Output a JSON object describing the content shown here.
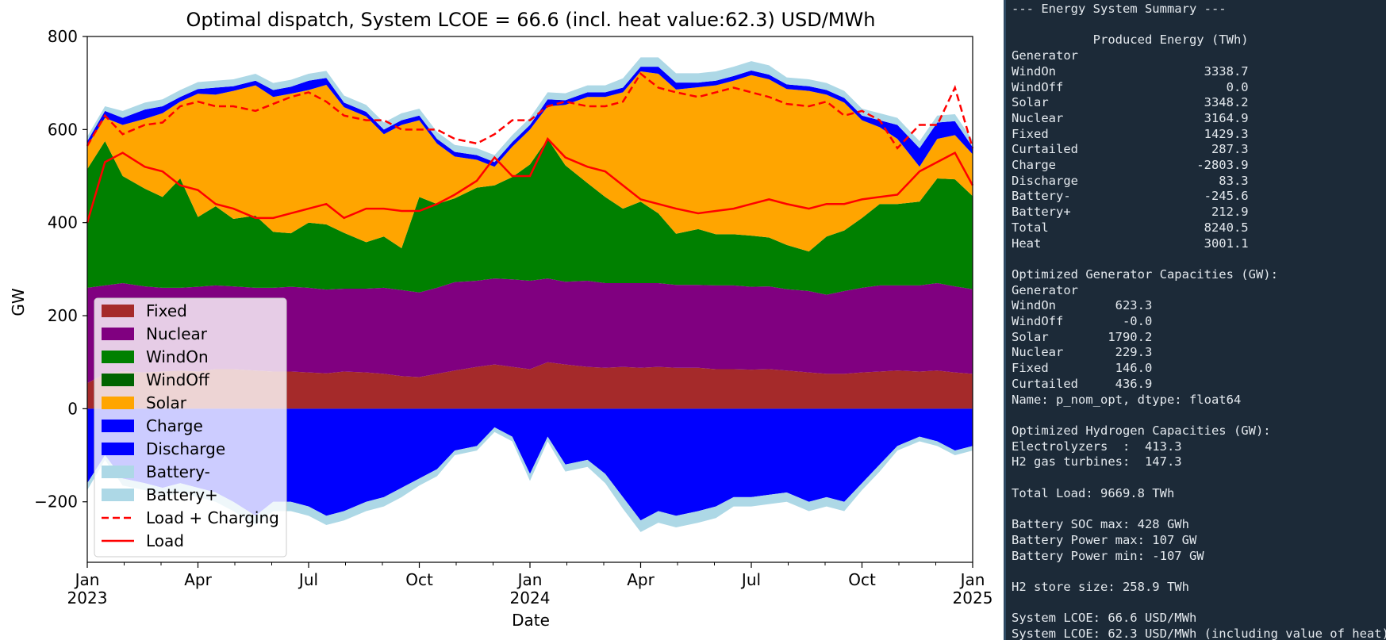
{
  "chart_data": {
    "type": "area",
    "title": "Optimal dispatch, System LCOE = 66.6 (incl. heat value:62.3) USD/MWh",
    "xlabel": "Date",
    "ylabel": "GW",
    "ylim": [
      -330,
      800
    ],
    "yticks": [
      -200,
      0,
      200,
      400,
      600,
      800
    ],
    "ytick_labels": [
      "−200",
      "0",
      "200",
      "400",
      "600",
      "800"
    ],
    "xlim": [
      2023.0,
      2025.0
    ],
    "xticks": [
      {
        "x": 2023.0,
        "label": "Jan",
        "year": "2023"
      },
      {
        "x": 2023.25,
        "label": "Apr",
        "year": ""
      },
      {
        "x": 2023.5,
        "label": "Jul",
        "year": ""
      },
      {
        "x": 2023.75,
        "label": "Oct",
        "year": ""
      },
      {
        "x": 2024.0,
        "label": "Jan",
        "year": "2024"
      },
      {
        "x": 2024.25,
        "label": "Apr",
        "year": ""
      },
      {
        "x": 2024.5,
        "label": "Jul",
        "year": ""
      },
      {
        "x": 2024.75,
        "label": "Oct",
        "year": ""
      },
      {
        "x": 2025.0,
        "label": "Jan",
        "year": "2025"
      }
    ],
    "grid": false,
    "legend_position": "lower-left",
    "legend": [
      "Fixed",
      "Nuclear",
      "WindOn",
      "WindOff",
      "Solar",
      "Charge",
      "Discharge",
      "Battery-",
      "Battery+",
      "Load + Charging",
      "Load"
    ],
    "colors": {
      "Fixed": "#a52a2a",
      "Nuclear": "#800080",
      "WindOn": "#008000",
      "WindOff": "#006400",
      "Solar": "#ffa500",
      "Charge": "#0000ff",
      "Discharge": "#0000ff",
      "Battery-": "#add8e6",
      "Battery+": "#add8e6",
      "Load + Charging": "#ff0000",
      "Load": "#ff0000"
    },
    "x": [
      2023.0,
      2023.04,
      2023.08,
      2023.13,
      2023.17,
      2023.21,
      2023.25,
      2023.29,
      2023.33,
      2023.38,
      2023.42,
      2023.46,
      2023.5,
      2023.54,
      2023.58,
      2023.63,
      2023.67,
      2023.71,
      2023.75,
      2023.79,
      2023.83,
      2023.88,
      2023.92,
      2023.96,
      2024.0,
      2024.04,
      2024.08,
      2024.13,
      2024.17,
      2024.21,
      2024.25,
      2024.29,
      2024.33,
      2024.38,
      2024.42,
      2024.46,
      2024.5,
      2024.54,
      2024.58,
      2024.63,
      2024.67,
      2024.71,
      2024.75,
      2024.79,
      2024.83,
      2024.88,
      2024.92,
      2024.96,
      2025.0
    ],
    "series": [
      {
        "name": "Fixed",
        "values": [
          55,
          75,
          80,
          78,
          80,
          82,
          80,
          85,
          85,
          82,
          80,
          80,
          78,
          76,
          80,
          78,
          75,
          70,
          68,
          75,
          82,
          90,
          95,
          90,
          85,
          100,
          95,
          90,
          88,
          90,
          88,
          90,
          88,
          88,
          85,
          85,
          84,
          85,
          82,
          78,
          75,
          75,
          78,
          80,
          82,
          80,
          82,
          78,
          75
        ]
      },
      {
        "name": "Nuclear",
        "values": [
          205,
          190,
          190,
          185,
          180,
          178,
          182,
          180,
          178,
          178,
          180,
          182,
          182,
          180,
          178,
          180,
          185,
          185,
          182,
          185,
          190,
          185,
          185,
          188,
          190,
          180,
          178,
          185,
          182,
          180,
          182,
          180,
          178,
          178,
          180,
          180,
          178,
          178,
          175,
          175,
          170,
          178,
          182,
          185,
          183,
          185,
          188,
          185,
          182
        ]
      },
      {
        "name": "WindOn",
        "values": [
          255,
          310,
          230,
          210,
          195,
          235,
          150,
          170,
          145,
          155,
          120,
          115,
          140,
          140,
          120,
          100,
          110,
          90,
          205,
          180,
          180,
          200,
          200,
          220,
          250,
          300,
          250,
          210,
          185,
          160,
          175,
          150,
          110,
          120,
          110,
          110,
          110,
          105,
          95,
          85,
          125,
          130,
          150,
          175,
          175,
          180,
          225,
          230,
          200
        ]
      },
      {
        "name": "WindOff",
        "values": [
          0,
          0,
          0,
          0,
          0,
          0,
          0,
          0,
          0,
          0,
          0,
          0,
          0,
          0,
          0,
          0,
          0,
          0,
          0,
          0,
          0,
          0,
          0,
          0,
          0,
          0,
          0,
          0,
          0,
          0,
          0,
          0,
          0,
          0,
          0,
          0,
          0,
          0,
          0,
          0,
          0,
          0,
          0,
          0,
          0,
          0,
          0,
          0,
          0
        ]
      },
      {
        "name": "Solar",
        "values": [
          50,
          50,
          110,
          150,
          180,
          165,
          265,
          240,
          275,
          280,
          290,
          300,
          285,
          300,
          270,
          270,
          220,
          265,
          165,
          130,
          90,
          60,
          40,
          65,
          75,
          70,
          130,
          185,
          215,
          250,
          280,
          300,
          310,
          305,
          320,
          330,
          345,
          340,
          335,
          345,
          305,
          275,
          210,
          165,
          140,
          75,
          85,
          95,
          90
        ]
      },
      {
        "name": "Charge",
        "values": [
          -160,
          -100,
          -150,
          -160,
          -170,
          -160,
          -170,
          -180,
          -200,
          -230,
          -200,
          -200,
          -210,
          -230,
          -220,
          -200,
          -190,
          -170,
          -150,
          -130,
          -90,
          -80,
          -40,
          -60,
          -140,
          -60,
          -120,
          -110,
          -140,
          -190,
          -240,
          -220,
          -230,
          -220,
          -210,
          -190,
          -190,
          -185,
          -180,
          -200,
          -190,
          -200,
          -160,
          -120,
          -80,
          -60,
          -70,
          -90,
          -80
        ]
      },
      {
        "name": "Discharge",
        "values": [
          10,
          15,
          15,
          20,
          15,
          10,
          10,
          15,
          10,
          10,
          15,
          15,
          20,
          15,
          10,
          10,
          10,
          10,
          10,
          10,
          10,
          10,
          10,
          10,
          10,
          15,
          10,
          10,
          10,
          10,
          10,
          15,
          15,
          10,
          10,
          10,
          10,
          10,
          10,
          10,
          10,
          10,
          10,
          15,
          30,
          40,
          35,
          30,
          15
        ]
      },
      {
        "name": "Battery-",
        "values": [
          -15,
          -10,
          -15,
          -15,
          -20,
          -20,
          -20,
          -20,
          -20,
          -20,
          -20,
          -20,
          -20,
          -20,
          -20,
          -20,
          -20,
          -20,
          -15,
          -15,
          -10,
          -10,
          -10,
          -10,
          -15,
          -10,
          -15,
          -15,
          -20,
          -25,
          -25,
          -25,
          -25,
          -25,
          -25,
          -20,
          -20,
          -20,
          -20,
          -20,
          -20,
          -20,
          -15,
          -15,
          -10,
          -10,
          -10,
          -10,
          -10
        ]
      },
      {
        "name": "Battery+",
        "values": [
          10,
          10,
          15,
          15,
          15,
          15,
          15,
          15,
          15,
          15,
          15,
          15,
          15,
          15,
          15,
          15,
          15,
          15,
          15,
          15,
          15,
          15,
          15,
          15,
          15,
          15,
          15,
          15,
          15,
          20,
          20,
          20,
          20,
          20,
          20,
          20,
          20,
          20,
          15,
          15,
          15,
          15,
          15,
          15,
          15,
          15,
          15,
          15,
          15
        ]
      },
      {
        "name": "Load + Charging",
        "values": [
          565,
          630,
          590,
          610,
          615,
          650,
          660,
          650,
          650,
          640,
          655,
          670,
          680,
          660,
          630,
          620,
          620,
          600,
          600,
          600,
          580,
          570,
          590,
          620,
          620,
          650,
          660,
          650,
          650,
          660,
          720,
          690,
          680,
          670,
          680,
          690,
          680,
          670,
          655,
          650,
          660,
          630,
          640,
          620,
          560,
          610,
          610,
          690,
          560
        ]
      },
      {
        "name": "Load",
        "values": [
          400,
          530,
          550,
          520,
          510,
          480,
          470,
          440,
          430,
          410,
          410,
          420,
          430,
          440,
          410,
          430,
          430,
          425,
          425,
          440,
          460,
          490,
          540,
          500,
          500,
          580,
          540,
          520,
          510,
          480,
          450,
          440,
          430,
          420,
          425,
          430,
          440,
          450,
          440,
          430,
          440,
          440,
          450,
          455,
          460,
          510,
          530,
          550,
          480
        ]
      }
    ]
  },
  "summary_lines": [
    "--- Energy System Summary ---",
    "",
    "           Produced Energy (TWh)",
    "Generator",
    "WindOn                    3338.7",
    "WindOff                      0.0",
    "Solar                     3348.2",
    "Nuclear                   3164.9",
    "Fixed                     1429.3",
    "Curtailed                  287.3",
    "Charge                   -2803.9",
    "Discharge                   83.3",
    "Battery-                  -245.6",
    "Battery+                   212.9",
    "Total                     8240.5",
    "Heat                      3001.1",
    "",
    "Optimized Generator Capacities (GW):",
    "Generator",
    "WindOn        623.3",
    "WindOff        -0.0",
    "Solar        1790.2",
    "Nuclear       229.3",
    "Fixed         146.0",
    "Curtailed     436.9",
    "Name: p_nom_opt, dtype: float64",
    "",
    "Optimized Hydrogen Capacities (GW):",
    "Electrolyzers  :  413.3",
    "H2 gas turbines:  147.3",
    "",
    "Total Load: 9669.8 TWh",
    "",
    "Battery SOC max: 428 GWh",
    "Battery Power max: 107 GW",
    "Battery Power min: -107 GW",
    "",
    "H2 store size: 258.9 TWh",
    "",
    "System LCOE: 66.6 USD/MWh",
    "System LCOE: 62.3 USD/MWh (including value of heat)"
  ]
}
